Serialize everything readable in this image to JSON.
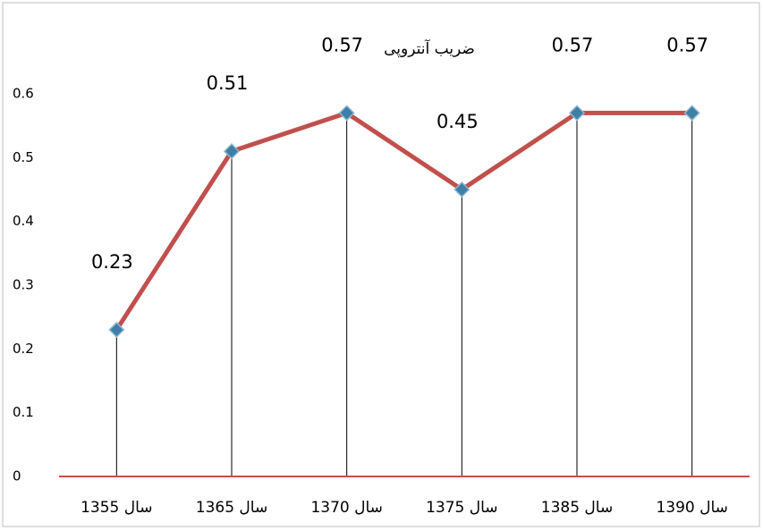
{
  "chart_data": {
    "type": "line",
    "title": "ضریب آنتروپی",
    "categories": [
      "سال 1355",
      "سال 1365",
      "سال 1370",
      "سال 1375",
      "سال 1385",
      "سال 1390"
    ],
    "values": [
      0.23,
      0.51,
      0.57,
      0.45,
      0.57,
      0.57
    ],
    "color": "#c0504d",
    "marker_color": "#3d7fa6",
    "ylim": [
      0,
      0.6
    ],
    "yticks": [
      0,
      0.1,
      0.2,
      0.3,
      0.4,
      0.5,
      0.6
    ],
    "drop_lines": true,
    "data_labels": true
  }
}
